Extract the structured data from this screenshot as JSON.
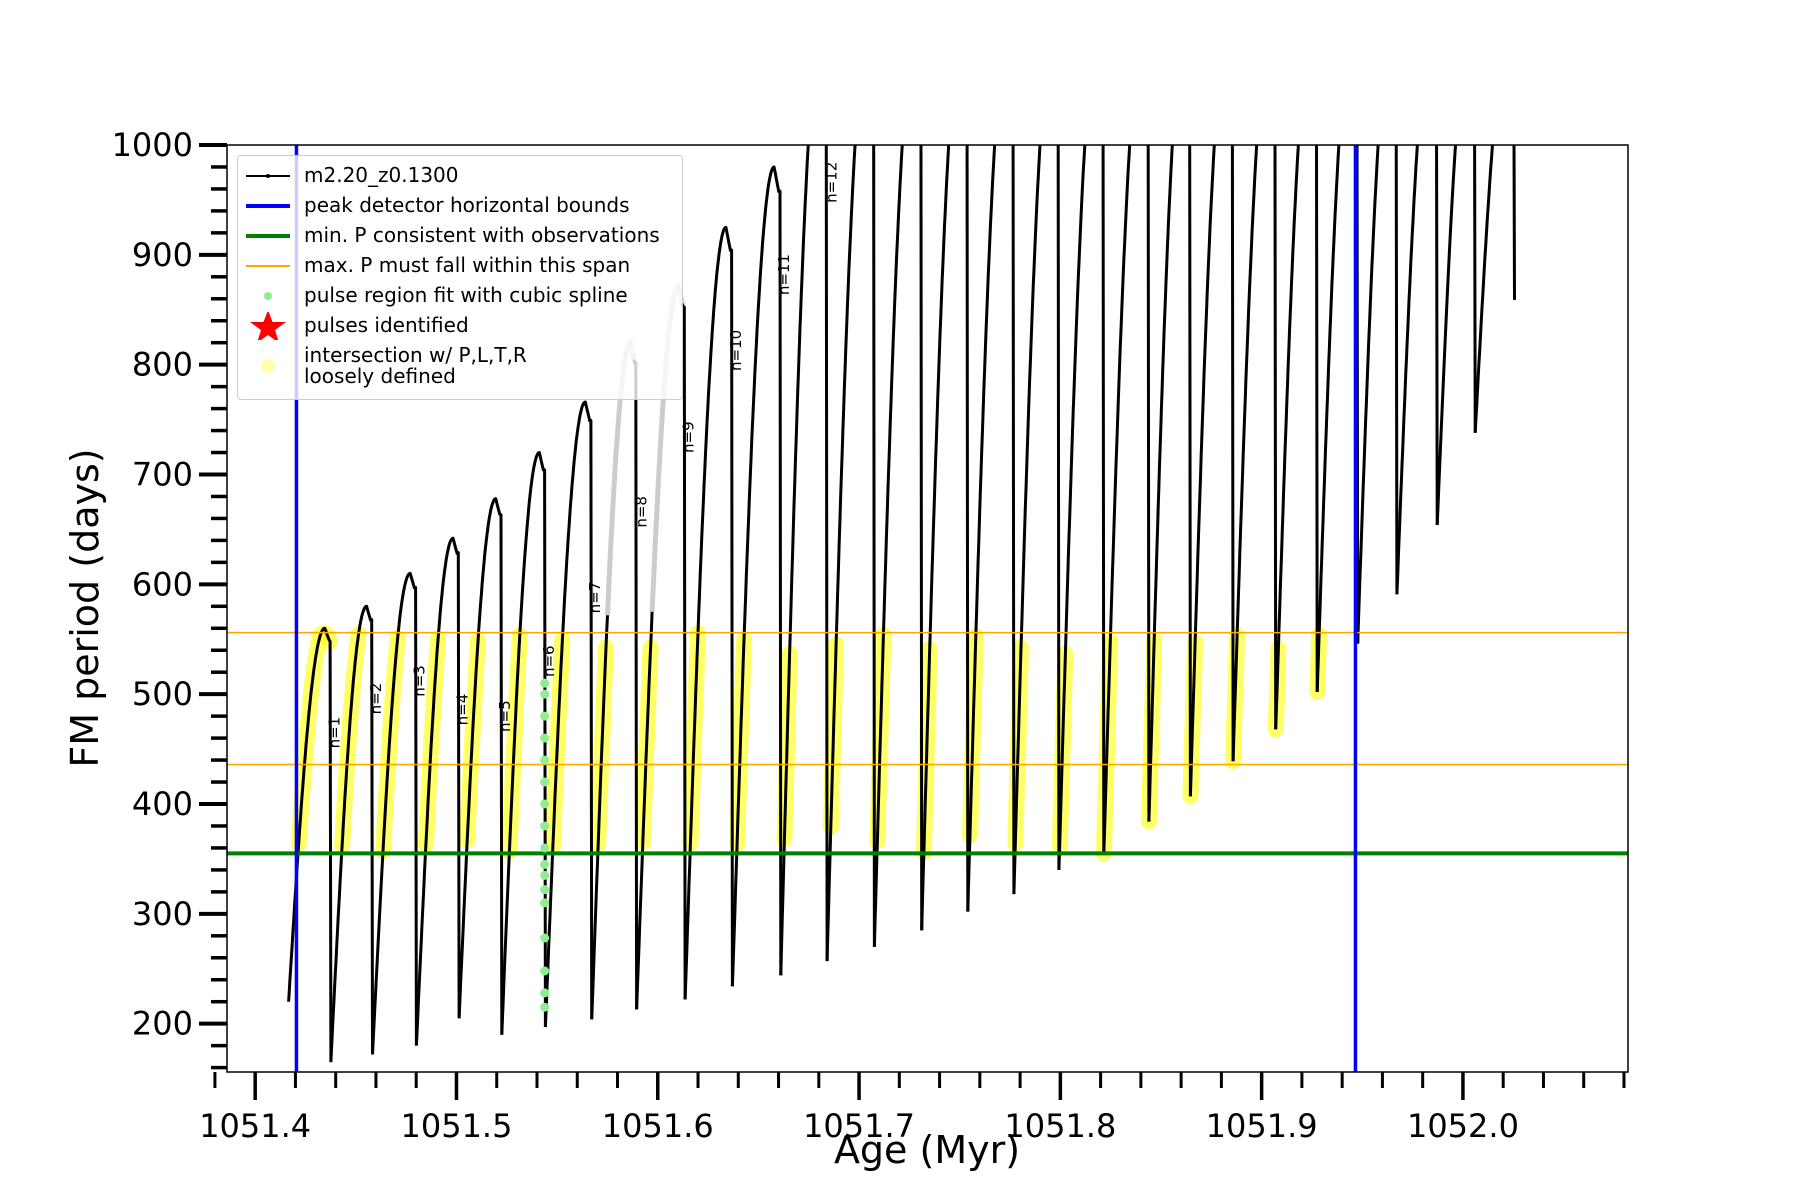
{
  "chart_data": {
    "type": "line",
    "xlabel": "Age (Myr)",
    "ylabel": "FM period (days)",
    "xlim": [
      1051.386,
      1052.082
    ],
    "ylim": [
      156,
      1000
    ],
    "xticks": [
      "1051.4",
      "1051.5",
      "1051.6",
      "1051.7",
      "1051.8",
      "1051.9",
      "1052.0"
    ],
    "yticks": [
      "200",
      "300",
      "400",
      "500",
      "600",
      "700",
      "800",
      "900",
      "1000"
    ],
    "grid": false,
    "legend": {
      "placement": "top-left",
      "entries": [
        {
          "label": "m2.20_z0.1300",
          "kind": "line-marker",
          "color": "#000000"
        },
        {
          "label": "peak detector horizontal bounds",
          "kind": "line",
          "color": "#0000ff"
        },
        {
          "label": "min. P consistent with observations",
          "kind": "line",
          "color": "#008000"
        },
        {
          "label": "max. P must fall within this span",
          "kind": "thinline",
          "color": "#ffa500"
        },
        {
          "label": "pulse region fit with cubic spline",
          "kind": "dot",
          "color": "#90ee90"
        },
        {
          "label": "pulses identified",
          "kind": "star",
          "color": "#ff0000"
        },
        {
          "label": "intersection w/ P,L,T,R",
          "label2": "loosely defined",
          "kind": "circle",
          "color": "#ffff99"
        }
      ]
    },
    "vertical_bounds": [
      1051.4205,
      1051.9466
    ],
    "min_period_line": 355,
    "max_period_span": [
      436,
      556
    ],
    "track_start": {
      "age": 1051.4166,
      "period": 220
    },
    "pulses": [
      {
        "age": 1051.4372,
        "peak": 560,
        "min": 165
      },
      {
        "age": 1051.4579,
        "peak": 580,
        "min": 172
      },
      {
        "age": 1051.4797,
        "peak": 610,
        "min": 180
      },
      {
        "age": 1051.5009,
        "peak": 642,
        "min": 205
      },
      {
        "age": 1051.5221,
        "peak": 678,
        "min": 190
      },
      {
        "age": 1051.5438,
        "peak": 720,
        "min": 197
      },
      {
        "age": 1051.5668,
        "peak": 766,
        "min": 204
      },
      {
        "age": 1051.5891,
        "peak": 820,
        "min": 213,
        "faded": true
      },
      {
        "age": 1051.6132,
        "peak": 872,
        "min": 222,
        "faded": true
      },
      {
        "age": 1051.6367,
        "peak": 925,
        "min": 234
      },
      {
        "age": 1051.6607,
        "peak": 980,
        "min": 244
      },
      {
        "age": 1051.6837,
        "peak": 1100,
        "min": 257
      },
      {
        "age": 1051.7072,
        "peak": 1100,
        "min": 270
      },
      {
        "age": 1051.7307,
        "peak": 1100,
        "min": 285
      },
      {
        "age": 1051.7536,
        "peak": 1100,
        "min": 302
      },
      {
        "age": 1051.7765,
        "peak": 1100,
        "min": 318
      },
      {
        "age": 1051.7989,
        "peak": 1100,
        "min": 340
      },
      {
        "age": 1051.8212,
        "peak": 1100,
        "min": 355
      },
      {
        "age": 1051.8436,
        "peak": 1100,
        "min": 384
      },
      {
        "age": 1051.8642,
        "peak": 1100,
        "min": 407
      },
      {
        "age": 1051.8854,
        "peak": 1100,
        "min": 439
      },
      {
        "age": 1051.9066,
        "peak": 1100,
        "min": 468
      },
      {
        "age": 1051.9272,
        "peak": 1100,
        "min": 502
      },
      {
        "age": 1051.9473,
        "peak": 1100,
        "min": 546
      },
      {
        "age": 1051.9668,
        "peak": 1100,
        "min": 591
      },
      {
        "age": 1051.9868,
        "peak": 1100,
        "min": 654
      },
      {
        "age": 1052.0057,
        "peak": 1100,
        "min": 738
      },
      {
        "age": 1052.0252,
        "peak": 1100,
        "min": 859
      }
    ],
    "spline_points": {
      "age": 1051.5438,
      "periods": [
        215,
        228,
        248,
        278,
        310,
        322,
        335,
        345,
        360,
        380,
        400,
        420,
        440,
        460,
        480,
        500,
        510
      ]
    },
    "annotations": [
      {
        "text": "n=1",
        "age": 1051.4418,
        "period": 465
      },
      {
        "text": "n=2",
        "age": 1051.4625,
        "period": 496
      },
      {
        "text": "n=3",
        "age": 1051.4842,
        "period": 512
      },
      {
        "text": "n=4",
        "age": 1051.5054,
        "period": 486
      },
      {
        "text": "n=5",
        "age": 1051.5266,
        "period": 480
      },
      {
        "text": "n=6",
        "age": 1051.5484,
        "period": 530
      },
      {
        "text": "n=7",
        "age": 1051.5713,
        "period": 588
      },
      {
        "text": "n=8",
        "age": 1051.5943,
        "period": 666
      },
      {
        "text": "n=9",
        "age": 1051.6178,
        "period": 734
      },
      {
        "text": "n=10",
        "age": 1051.6413,
        "period": 813
      },
      {
        "text": "n=11",
        "age": 1051.6653,
        "period": 882
      },
      {
        "text": "n=12",
        "age": 1051.6888,
        "period": 966
      }
    ]
  }
}
